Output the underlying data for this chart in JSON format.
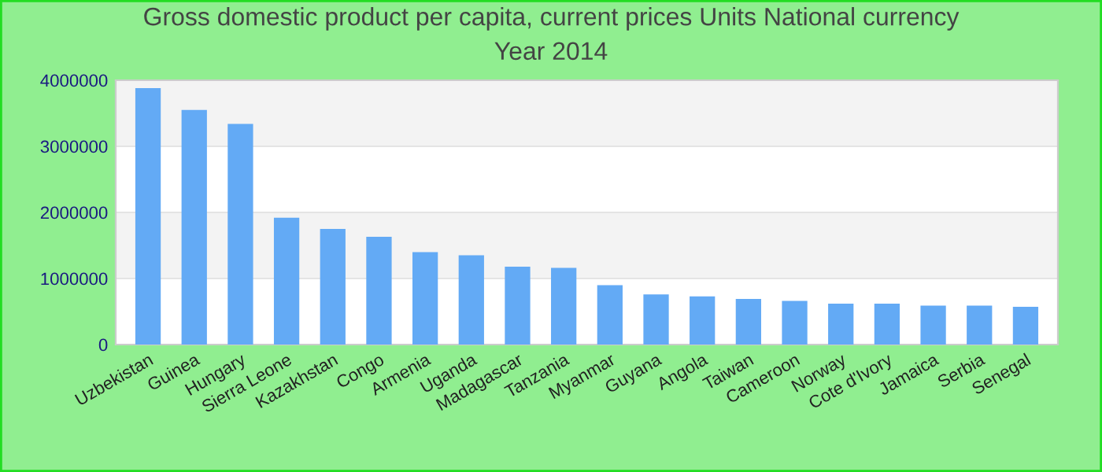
{
  "chart_data": {
    "type": "bar",
    "title": "Gross domestic product per capita, current prices Units National currency\nYear 2014",
    "categories": [
      "Uzbekistan",
      "Guinea",
      "Hungary",
      "Sierra Leone",
      "Kazakhstan",
      "Congo",
      "Armenia",
      "Uganda",
      "Madagascar",
      "Tanzania",
      "Myanmar",
      "Guyana",
      "Angola",
      "Taiwan",
      "Cameroon",
      "Norway",
      "Cote d'Ivory",
      "Jamaica",
      "Serbia",
      "Senegal"
    ],
    "values": [
      3880000,
      3550000,
      3340000,
      1920000,
      1750000,
      1630000,
      1400000,
      1350000,
      1180000,
      1160000,
      900000,
      760000,
      730000,
      690000,
      660000,
      620000,
      620000,
      590000,
      590000,
      570000
    ],
    "color": "#63aaf5",
    "ylim": [
      0,
      4000000
    ],
    "yticks": [
      0,
      1000000,
      2000000,
      3000000,
      4000000
    ],
    "grid": "y",
    "legend": false
  }
}
